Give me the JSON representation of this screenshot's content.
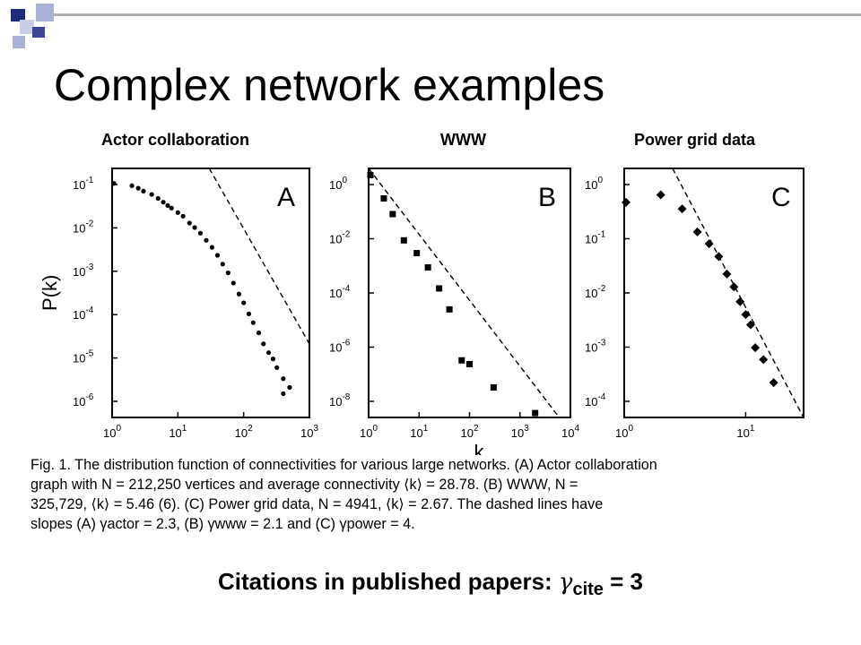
{
  "slide": {
    "title": "Complex network examples",
    "accent_colors": {
      "dark": "#1f2a7a",
      "light": "#a8b0d8",
      "line": "#b0b0b0"
    }
  },
  "chart_data": [
    {
      "type": "scatter",
      "panel_header": "Actor collaboration",
      "panel_letter": "A",
      "xscale": "log",
      "yscale": "log",
      "xlim": [
        1,
        1000
      ],
      "ylim": [
        1e-06,
        0.1
      ],
      "xticks": [
        "10^0",
        "10^1",
        "10^2",
        "10^3"
      ],
      "yticks": [
        "10^-1",
        "10^-2",
        "10^-3",
        "10^-4",
        "10^-5",
        "10^-6"
      ],
      "ylabel": "P(k)",
      "points": [
        [
          1,
          0.05
        ],
        [
          2,
          0.045
        ],
        [
          2.5,
          0.04
        ],
        [
          3,
          0.035
        ],
        [
          4,
          0.03
        ],
        [
          5,
          0.025
        ],
        [
          6,
          0.021
        ],
        [
          7,
          0.018
        ],
        [
          8,
          0.016
        ],
        [
          10,
          0.013
        ],
        [
          12,
          0.011
        ],
        [
          15,
          0.008
        ],
        [
          18,
          0.0065
        ],
        [
          22,
          0.005
        ],
        [
          27,
          0.0036
        ],
        [
          33,
          0.0026
        ],
        [
          40,
          0.0018
        ],
        [
          48,
          0.0012
        ],
        [
          58,
          0.0008
        ],
        [
          70,
          0.0005
        ],
        [
          85,
          0.0003
        ],
        [
          100,
          0.0002
        ],
        [
          120,
          0.00012
        ],
        [
          140,
          8e-05
        ],
        [
          170,
          5e-05
        ],
        [
          200,
          3e-05
        ],
        [
          240,
          2e-05
        ],
        [
          280,
          1.5e-05
        ],
        [
          320,
          1e-05
        ],
        [
          400,
          6e-06
        ],
        [
          500,
          4e-06
        ],
        [
          400,
          3e-06
        ]
      ],
      "dashed_fit": {
        "slope": -2.3,
        "from": [
          30,
          0.1
        ],
        "to": [
          1000,
          3e-05
        ]
      }
    },
    {
      "type": "scatter",
      "panel_header": "WWW",
      "panel_letter": "B",
      "xscale": "log",
      "yscale": "log",
      "xlim": [
        1,
        10000
      ],
      "ylim": [
        5e-09,
        1
      ],
      "xticks": [
        "10^0",
        "10^1",
        "10^2",
        "10^3",
        "10^4"
      ],
      "yticks": [
        "10^0",
        "10^-2",
        "10^-4",
        "10^-6",
        "10^-8"
      ],
      "xlabel": "k",
      "points": [
        [
          1,
          0.6
        ],
        [
          2,
          0.1
        ],
        [
          3,
          0.03
        ],
        [
          5,
          0.004
        ],
        [
          9,
          0.0015
        ],
        [
          15,
          0.0005
        ],
        [
          25,
          0.0001
        ],
        [
          40,
          2e-05
        ],
        [
          70,
          4e-07
        ],
        [
          100,
          3e-07
        ],
        [
          300,
          5e-08
        ],
        [
          2000,
          7e-09
        ]
      ],
      "dashed_fit": {
        "slope": -2.1,
        "from": [
          1,
          1
        ],
        "to": [
          6000,
          5e-09
        ]
      }
    },
    {
      "type": "scatter",
      "panel_header": "Power grid data",
      "panel_letter": "C",
      "xscale": "log",
      "yscale": "log",
      "xlim": [
        1,
        30
      ],
      "ylim": [
        5e-05,
        1
      ],
      "xticks": [
        "10^0",
        "10^1"
      ],
      "yticks": [
        "10^0",
        "10^-1",
        "10^-2",
        "10^-3",
        "10^-4"
      ],
      "points": [
        [
          1,
          0.26
        ],
        [
          2,
          0.35
        ],
        [
          3,
          0.2
        ],
        [
          4,
          0.08
        ],
        [
          5,
          0.05
        ],
        [
          6,
          0.03
        ],
        [
          7,
          0.015
        ],
        [
          8,
          0.009
        ],
        [
          9,
          0.005
        ],
        [
          10,
          0.003
        ],
        [
          11,
          0.002
        ],
        [
          12,
          0.0008
        ],
        [
          14,
          0.0005
        ],
        [
          17,
          0.0002
        ]
      ],
      "dashed_fit": {
        "slope": -4,
        "from": [
          2.5,
          1
        ],
        "to": [
          30,
          5e-05
        ]
      }
    }
  ],
  "caption": {
    "lines": [
      "Fig. 1. The distribution function of connectivities for various large networks. (A) Actor collaboration",
      "graph with N = 212,250 vertices and average connectivity ⟨k⟩ = 28.78. (B) WWW, N =",
      "325,729, ⟨k⟩ = 5.46 (6). (C) Power grid data, N = 4941, ⟨k⟩ = 2.67. The dashed lines have",
      "slopes (A) γactor = 2.3, (B) γwww = 2.1 and (C) γpower = 4."
    ]
  },
  "footer": {
    "prefix": "Citations in published papers: ",
    "gamma": "γ",
    "subscript": "cite",
    "suffix": " = 3"
  }
}
